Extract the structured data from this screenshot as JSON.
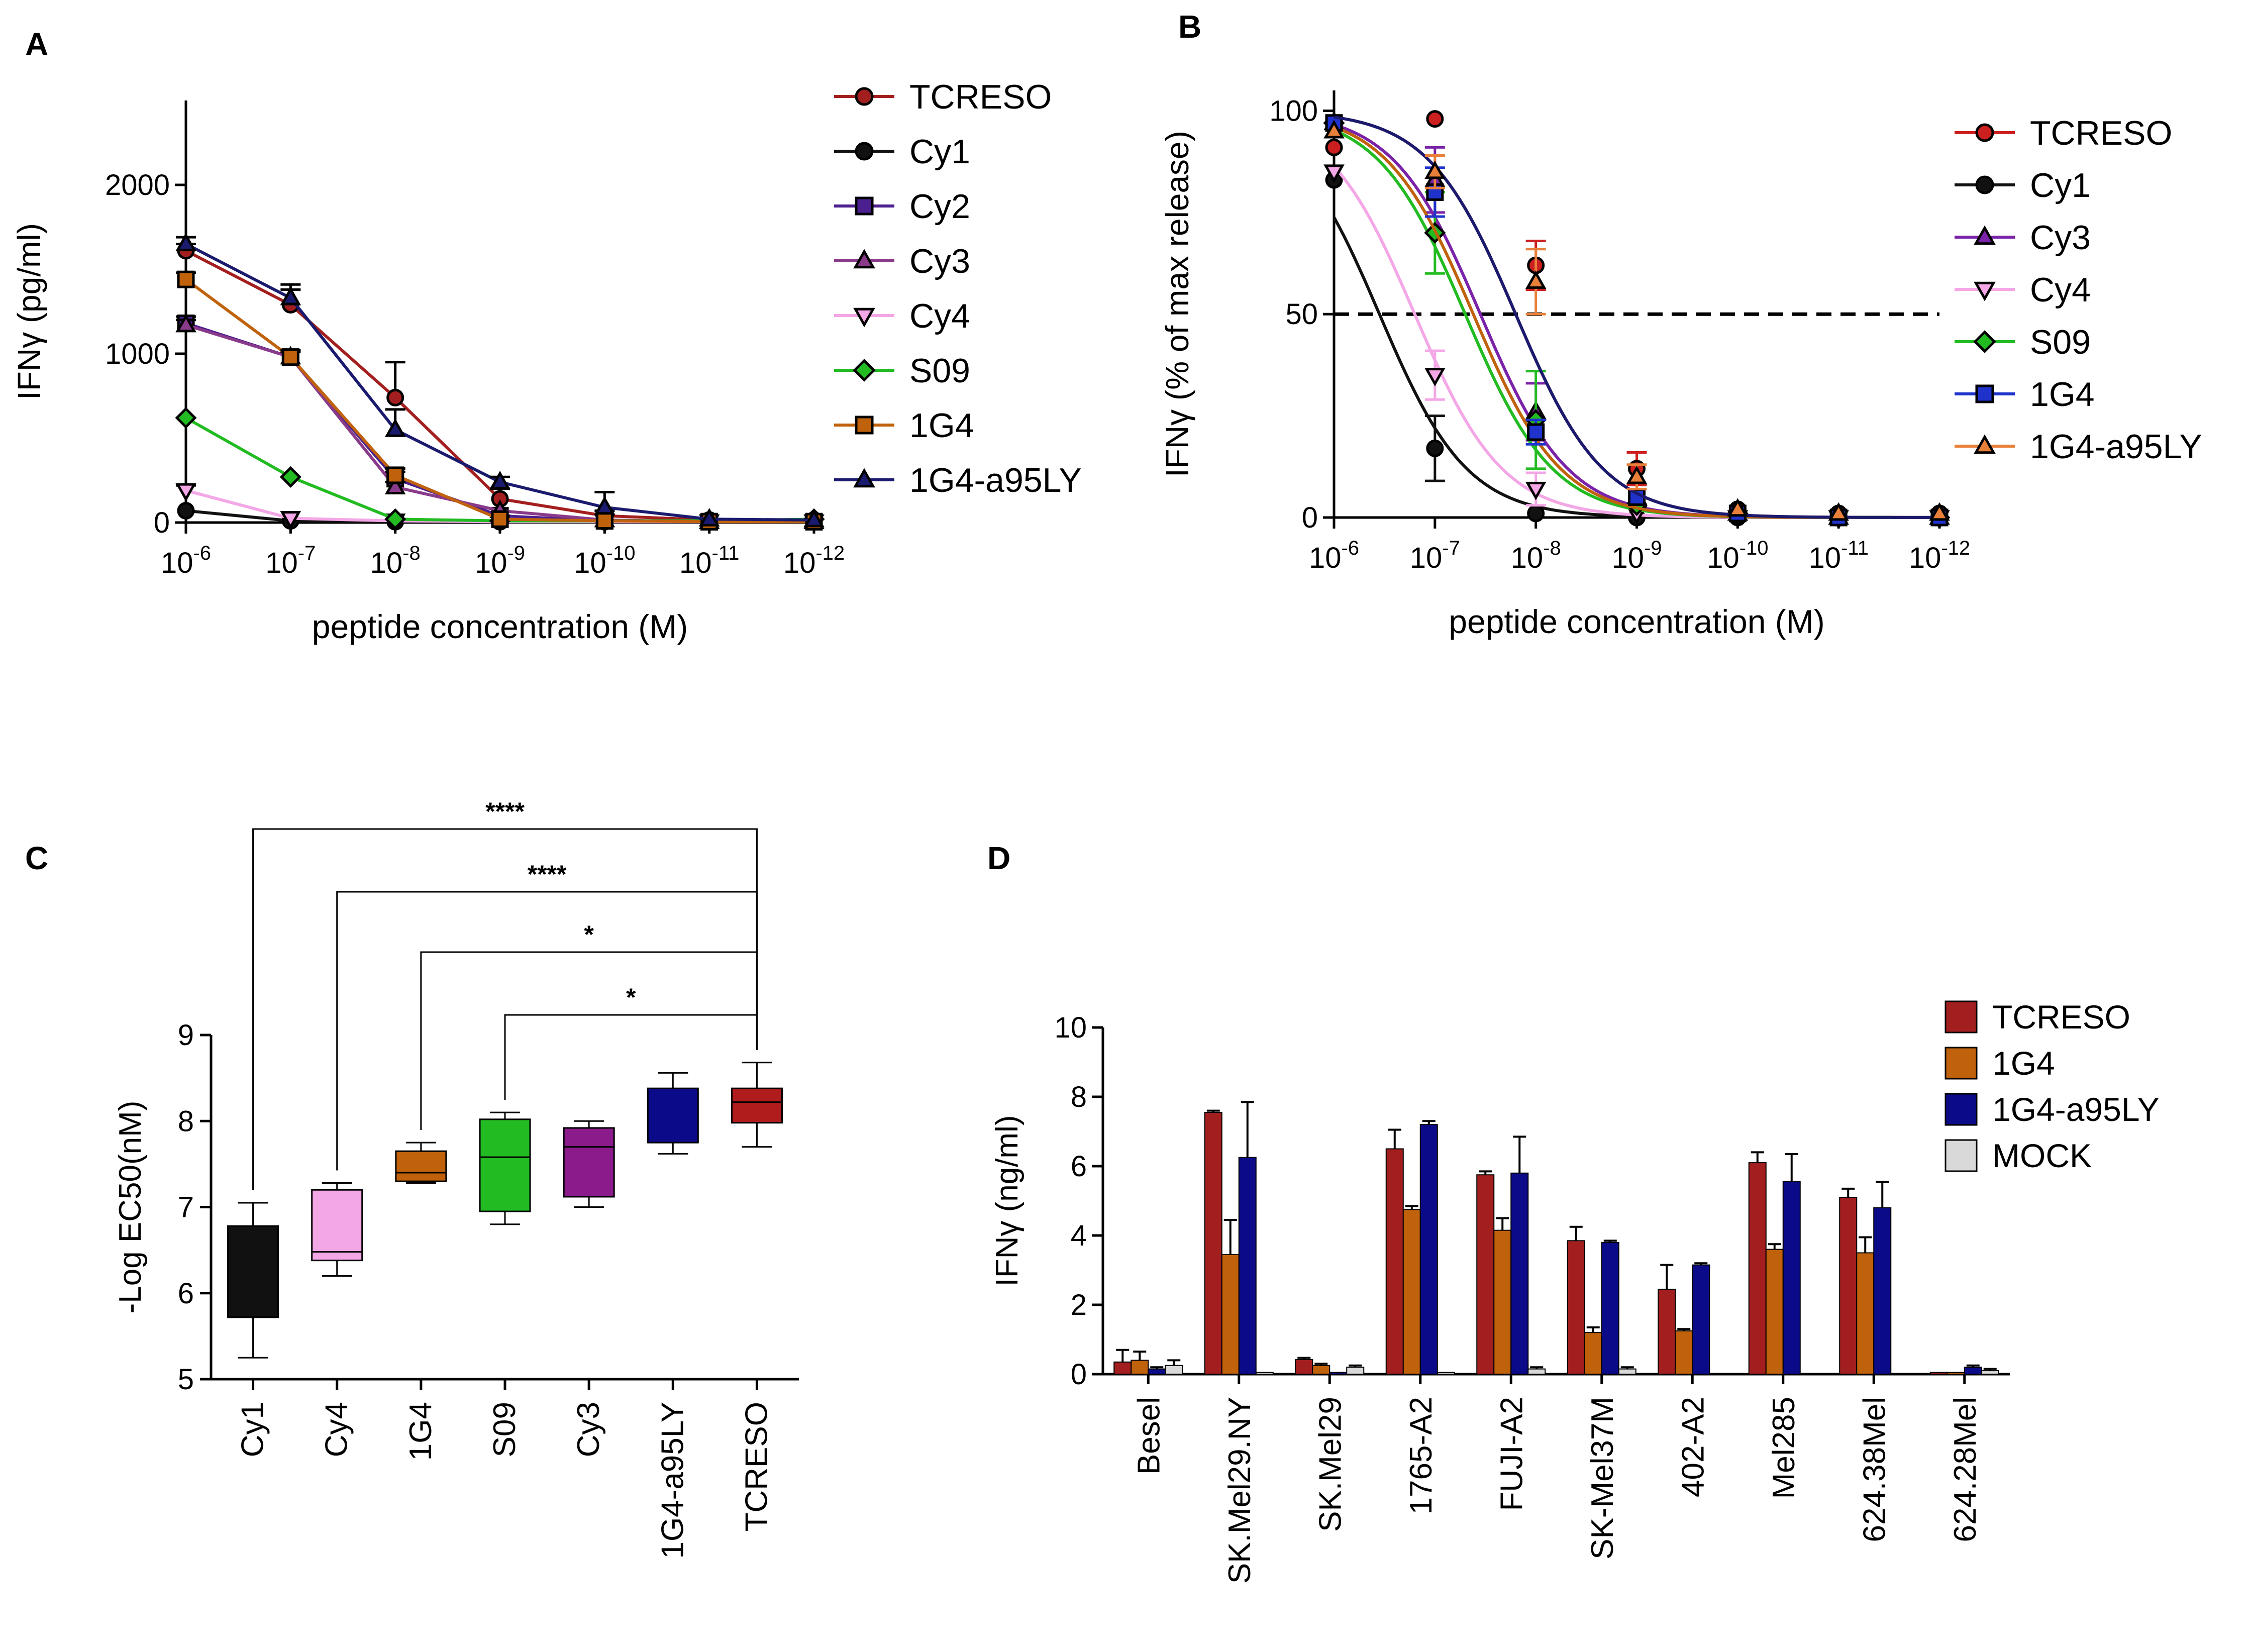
{
  "figure": {
    "panel_labels": [
      "A",
      "B",
      "C",
      "D"
    ]
  },
  "colors": {
    "TCRESO": "#a31f1f",
    "Cy1": "#111111",
    "Cy2": "#4b1f8f",
    "Cy3": "#8a3a8a",
    "Cy3_B": "#7a22a8",
    "Cy4": "#f4a7e6",
    "S09": "#22bb22",
    "1G4": "#c0620c",
    "1G4-a95LY": "#1a1a6e",
    "MOCK": "#d9d9d9",
    "TCRESO_B": "#cc1f1f",
    "1G4_B": "#1f33cc",
    "1G4-a95LY_B": "#e8803a"
  },
  "chart_data": [
    {
      "panel": "A",
      "type": "line",
      "title": "",
      "xlabel": "peptide concentration (M)",
      "ylabel": "IFNγ (pg/ml)",
      "x_ticks": [
        "-6",
        "-7",
        "-8",
        "-9",
        "-10",
        "-11",
        "-12"
      ],
      "x_tick_base": "10",
      "x_log": [
        -6,
        -7,
        -8,
        -9,
        -10,
        -11,
        -12
      ],
      "y_ticks": [
        0,
        1000,
        2000
      ],
      "ylim": [
        0,
        2500
      ],
      "series": [
        {
          "name": "TCRESO",
          "marker": "circle",
          "x": [
            -6,
            -7,
            -8,
            -9,
            -10,
            -11,
            -12
          ],
          "values": [
            1610,
            1290,
            740,
            140,
            40,
            15,
            15
          ],
          "err": [
            40,
            90,
            210,
            60,
            30,
            0,
            0
          ]
        },
        {
          "name": "Cy1",
          "marker": "circle",
          "x": [
            -6,
            -7,
            -8,
            -9,
            -10,
            -11,
            -12
          ],
          "values": [
            70,
            10,
            5,
            5,
            5,
            5,
            5
          ],
          "err": [
            0,
            0,
            0,
            0,
            0,
            0,
            0
          ]
        },
        {
          "name": "Cy2",
          "marker": "square",
          "x": [
            -6,
            -7,
            -8,
            -9,
            -10,
            -11,
            -12
          ],
          "values": [
            1180,
            980,
            260,
            40,
            10,
            5,
            5
          ],
          "err": [
            40,
            40,
            40,
            0,
            0,
            0,
            0
          ]
        },
        {
          "name": "Cy3",
          "marker": "triangle",
          "x": [
            -6,
            -7,
            -8,
            -9,
            -10,
            -11,
            -12
          ],
          "values": [
            1170,
            980,
            210,
            70,
            15,
            5,
            5
          ],
          "err": [
            30,
            30,
            30,
            0,
            0,
            0,
            0
          ]
        },
        {
          "name": "Cy4",
          "marker": "triangle-down",
          "x": [
            -6,
            -7,
            -8,
            -9,
            -10,
            -11,
            -12
          ],
          "values": [
            190,
            25,
            10,
            5,
            5,
            5,
            5
          ],
          "err": [
            30,
            0,
            0,
            0,
            0,
            0,
            0
          ]
        },
        {
          "name": "S09",
          "marker": "diamond",
          "x": [
            -6,
            -7,
            -8,
            -9,
            -10,
            -11,
            -12
          ],
          "values": [
            620,
            270,
            20,
            10,
            10,
            10,
            20
          ],
          "err": [
            0,
            0,
            0,
            0,
            0,
            0,
            0
          ]
        },
        {
          "name": "1G4",
          "marker": "square",
          "x": [
            -6,
            -7,
            -8,
            -9,
            -10,
            -11,
            -12
          ],
          "values": [
            1440,
            980,
            280,
            20,
            10,
            5,
            5
          ],
          "err": [
            40,
            40,
            40,
            0,
            0,
            0,
            0
          ]
        },
        {
          "name": "1G4-a95LY",
          "marker": "triangle",
          "x": [
            -6,
            -7,
            -8,
            -9,
            -10,
            -11,
            -12
          ],
          "values": [
            1650,
            1330,
            550,
            240,
            90,
            20,
            15
          ],
          "err": [
            40,
            80,
            120,
            30,
            90,
            0,
            0
          ]
        }
      ]
    },
    {
      "panel": "B",
      "type": "line",
      "title": "",
      "xlabel": "peptide concentration (M)",
      "ylabel": "IFNγ (% of max release)",
      "x_ticks": [
        "-6",
        "-7",
        "-8",
        "-9",
        "-10",
        "-11",
        "-12"
      ],
      "x_tick_base": "10",
      "x_log": [
        -6,
        -7,
        -8,
        -9,
        -10,
        -11,
        -12
      ],
      "y_ticks": [
        0,
        50,
        100
      ],
      "ylim": [
        0,
        105
      ],
      "reference_line": 50,
      "series": [
        {
          "name": "TCRESO",
          "marker": "circle",
          "logEC50": -7.8,
          "hill": 1.0,
          "x": [
            -6,
            -7,
            -8,
            -9,
            -10,
            -11,
            -12
          ],
          "values": [
            91,
            98,
            62,
            12,
            2,
            1,
            1
          ],
          "err": [
            0,
            0,
            6,
            4,
            0,
            0,
            0
          ]
        },
        {
          "name": "Cy1",
          "marker": "circle",
          "logEC50": -6.45,
          "hill": 1.0,
          "x": [
            -6,
            -7,
            -8,
            -9,
            -10,
            -11,
            -12
          ],
          "values": [
            83,
            17,
            1,
            0,
            0,
            0,
            0
          ],
          "err": [
            0,
            8,
            0,
            0,
            0,
            0,
            0
          ]
        },
        {
          "name": "Cy3",
          "marker": "triangle",
          "logEC50": -7.45,
          "hill": 1.0,
          "x": [
            -6,
            -7,
            -8,
            -9,
            -10,
            -11,
            -12
          ],
          "values": [
            97,
            83,
            26,
            5,
            1,
            0,
            0
          ],
          "err": [
            0,
            8,
            7,
            0,
            0,
            0,
            0
          ]
        },
        {
          "name": "Cy4",
          "marker": "triangle-down",
          "logEC50": -6.8,
          "hill": 1.0,
          "x": [
            -6,
            -7,
            -8,
            -9,
            -10,
            -11,
            -12
          ],
          "values": [
            85,
            35,
            7,
            1,
            0,
            0,
            0
          ],
          "err": [
            0,
            6,
            4,
            0,
            0,
            0,
            0
          ]
        },
        {
          "name": "S09",
          "marker": "diamond",
          "logEC50": -7.3,
          "hill": 1.0,
          "x": [
            -6,
            -7,
            -8,
            -9,
            -10,
            -11,
            -12
          ],
          "values": [
            97,
            70,
            24,
            3,
            1,
            0,
            0
          ],
          "err": [
            0,
            10,
            12,
            0,
            0,
            0,
            0
          ]
        },
        {
          "name": "1G4",
          "marker": "square",
          "logEC50": -7.38,
          "hill": 1.0,
          "x": [
            -6,
            -7,
            -8,
            -9,
            -10,
            -11,
            -12
          ],
          "values": [
            97,
            80,
            21,
            5,
            1,
            0,
            0
          ],
          "err": [
            0,
            6,
            3,
            0,
            0,
            0,
            0
          ]
        },
        {
          "name": "1G4-a95LY",
          "marker": "triangle",
          "logEC50": -7.8,
          "hill": 1.0,
          "x": [
            -6,
            -7,
            -8,
            -9,
            -10,
            -11,
            -12
          ],
          "values": [
            95,
            85,
            58,
            10,
            2,
            1,
            1
          ],
          "err": [
            0,
            4,
            8,
            3,
            0,
            0,
            0
          ]
        }
      ]
    },
    {
      "panel": "C",
      "type": "box",
      "title": "",
      "xlabel": "",
      "ylabel": "-Log EC50(nM)",
      "y_ticks": [
        5,
        6,
        7,
        8,
        9
      ],
      "ylim": [
        5,
        9
      ],
      "categories": [
        "Cy1",
        "Cy4",
        "1G4",
        "S09",
        "Cy3",
        "1G4-a95LY",
        "TCRESO"
      ],
      "boxes": [
        {
          "name": "Cy1",
          "min": 5.25,
          "q1": 5.72,
          "median": 5.72,
          "q3": 6.78,
          "max": 7.05
        },
        {
          "name": "Cy4",
          "min": 6.2,
          "q1": 6.38,
          "median": 6.48,
          "q3": 7.2,
          "max": 7.28
        },
        {
          "name": "1G4",
          "min": 7.28,
          "q1": 7.3,
          "median": 7.4,
          "q3": 7.65,
          "max": 7.75
        },
        {
          "name": "S09",
          "min": 6.8,
          "q1": 6.95,
          "median": 7.58,
          "q3": 8.02,
          "max": 8.1
        },
        {
          "name": "Cy3",
          "min": 7.0,
          "q1": 7.12,
          "median": 7.7,
          "q3": 7.92,
          "max": 8.0
        },
        {
          "name": "1G4-a95LY",
          "min": 7.62,
          "q1": 7.75,
          "median": 7.75,
          "q3": 8.38,
          "max": 8.56
        },
        {
          "name": "TCRESO",
          "min": 7.7,
          "q1": 7.98,
          "median": 8.22,
          "q3": 8.38,
          "max": 8.68
        }
      ],
      "significance": [
        {
          "from": "Cy1",
          "to": "TCRESO",
          "label": "****"
        },
        {
          "from": "Cy4",
          "to": "TCRESO",
          "label": "****"
        },
        {
          "from": "1G4",
          "to": "TCRESO",
          "label": "*"
        },
        {
          "from": "S09",
          "to": "TCRESO",
          "label": "*"
        }
      ]
    },
    {
      "panel": "D",
      "type": "bar",
      "title": "",
      "xlabel": "",
      "ylabel": "IFNγ (ng/ml)",
      "y_ticks": [
        0,
        2,
        4,
        6,
        8,
        10
      ],
      "ylim": [
        0,
        10
      ],
      "categories": [
        "Besel",
        "SK.Mel29.NY",
        "SK.Mel29",
        "1765-A2",
        "FUJI-A2",
        "SK-Mel37M",
        "402-A2",
        "Mel285",
        "624.38Mel",
        "624.28Mel"
      ],
      "series": [
        {
          "name": "TCRESO",
          "values": [
            0.35,
            7.55,
            0.42,
            6.5,
            5.75,
            3.85,
            2.45,
            6.1,
            5.1,
            0.05
          ],
          "err": [
            0.35,
            0.05,
            0.05,
            0.55,
            0.1,
            0.4,
            0.7,
            0.3,
            0.25,
            0.0
          ]
        },
        {
          "name": "1G4",
          "values": [
            0.4,
            3.45,
            0.25,
            4.75,
            4.15,
            1.2,
            1.25,
            3.6,
            3.5,
            0.05
          ],
          "err": [
            0.25,
            1.0,
            0.05,
            0.1,
            0.35,
            0.15,
            0.05,
            0.15,
            0.45,
            0.0
          ]
        },
        {
          "name": "1G4-a95LY",
          "values": [
            0.15,
            6.25,
            0.05,
            7.2,
            5.8,
            3.8,
            3.15,
            5.55,
            4.8,
            0.2
          ],
          "err": [
            0.05,
            1.6,
            0.0,
            0.1,
            1.05,
            0.05,
            0.05,
            0.8,
            0.75,
            0.05
          ]
        },
        {
          "name": "MOCK",
          "values": [
            0.25,
            0.05,
            0.2,
            0.05,
            0.15,
            0.15,
            0.02,
            0.02,
            0.02,
            0.1
          ],
          "err": [
            0.15,
            0.0,
            0.05,
            0.0,
            0.05,
            0.05,
            0.0,
            0.0,
            0.0,
            0.05
          ]
        }
      ]
    }
  ]
}
